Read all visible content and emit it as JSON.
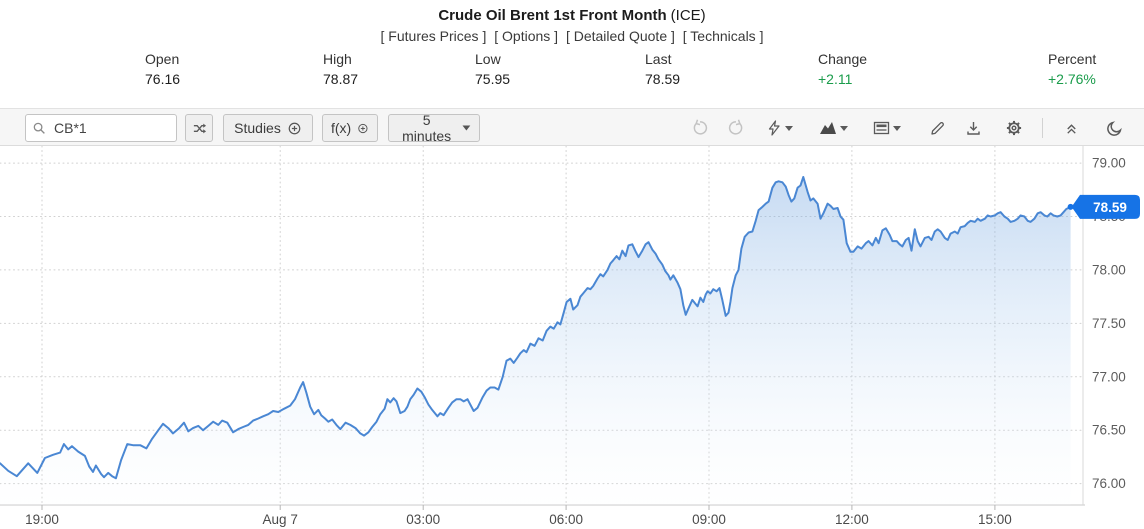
{
  "header": {
    "title": "Crude Oil Brent 1st Front Month",
    "title_suffix": "(ICE)",
    "links": [
      "[ Futures Prices ]",
      "[ Options ]",
      "[ Detailed Quote ]",
      "[ Technicals ]"
    ],
    "stats": [
      {
        "label": "Open",
        "value": "76.16"
      },
      {
        "label": "High",
        "value": "78.87"
      },
      {
        "label": "Low",
        "value": "75.95"
      },
      {
        "label": "Last",
        "value": "78.59"
      },
      {
        "label": "Change",
        "value": "+2.11"
      },
      {
        "label": "Percent",
        "value": "+2.76%"
      }
    ]
  },
  "toolbar": {
    "symbol_value": "CB*1",
    "studies_label": "Studies",
    "fx_label": "f(x)",
    "interval_label": "5 minutes",
    "icon_names": [
      "search-icon",
      "shuffle-icon",
      "plus-circle-icon",
      "caret-down-icon",
      "undo-icon",
      "redo-icon",
      "events-lightning-icon",
      "chart-type-area-icon",
      "layout-panels-icon",
      "draw-pencil-icon",
      "download-icon",
      "settings-gear-icon",
      "collapse-toolbar-icon",
      "dark-mode-moon-icon"
    ]
  },
  "colors": {
    "line": "#4a87d3",
    "area_top": "rgba(120,168,224,0.42)",
    "area_mid": "rgba(178,208,240,0.26)",
    "area_bottom": "rgba(252,253,255,0.10)",
    "badge": "#1673e6",
    "positive_green": "#1a9c4b",
    "grid": "#d0d0d0",
    "axis_text": "#5c5c5c"
  },
  "chart_data": {
    "type": "area",
    "title": "Crude Oil Brent 1st Front Month (ICE) — 5 minute chart",
    "x_unit": "hours since Aug 6 18:00",
    "xlim": [
      0.118,
      22.85
    ],
    "ylim": [
      75.8,
      79.16
    ],
    "y_ticks": [
      76.0,
      76.5,
      77.0,
      77.5,
      78.0,
      78.5,
      79.0
    ],
    "x_ticks": [
      {
        "label": "19:00",
        "h": 1
      },
      {
        "label": "Aug 7",
        "h": 6
      },
      {
        "label": "03:00",
        "h": 9
      },
      {
        "label": "06:00",
        "h": 12
      },
      {
        "label": "09:00",
        "h": 15
      },
      {
        "label": "12:00",
        "h": 18
      },
      {
        "label": "15:00",
        "h": 21
      }
    ],
    "legend": "off",
    "grid": "dotted",
    "last": 78.59,
    "last_label": "78.59",
    "series": [
      {
        "name": "CB*1",
        "points": [
          [
            0.12,
            76.19
          ],
          [
            0.29,
            76.12
          ],
          [
            0.47,
            76.07
          ],
          [
            0.71,
            76.19
          ],
          [
            0.9,
            76.1
          ],
          [
            1.06,
            76.24
          ],
          [
            1.23,
            76.27
          ],
          [
            1.38,
            76.29
          ],
          [
            1.46,
            76.37
          ],
          [
            1.55,
            76.32
          ],
          [
            1.63,
            76.35
          ],
          [
            1.76,
            76.3
          ],
          [
            1.9,
            76.26
          ],
          [
            1.99,
            76.16
          ],
          [
            2.07,
            76.11
          ],
          [
            2.13,
            76.17
          ],
          [
            2.24,
            76.09
          ],
          [
            2.3,
            76.06
          ],
          [
            2.39,
            76.1
          ],
          [
            2.47,
            76.07
          ],
          [
            2.55,
            76.05
          ],
          [
            2.66,
            76.22
          ],
          [
            2.79,
            76.37
          ],
          [
            2.91,
            76.36
          ],
          [
            3.06,
            76.36
          ],
          [
            3.19,
            76.33
          ],
          [
            3.31,
            76.42
          ],
          [
            3.44,
            76.5
          ],
          [
            3.54,
            76.56
          ],
          [
            3.65,
            76.52
          ],
          [
            3.75,
            76.47
          ],
          [
            3.88,
            76.52
          ],
          [
            3.98,
            76.57
          ],
          [
            4.07,
            76.49
          ],
          [
            4.17,
            76.52
          ],
          [
            4.28,
            76.54
          ],
          [
            4.38,
            76.5
          ],
          [
            4.49,
            76.54
          ],
          [
            4.59,
            76.58
          ],
          [
            4.7,
            76.55
          ],
          [
            4.78,
            76.59
          ],
          [
            4.89,
            76.57
          ],
          [
            5.01,
            76.48
          ],
          [
            5.12,
            76.51
          ],
          [
            5.22,
            76.53
          ],
          [
            5.33,
            76.55
          ],
          [
            5.43,
            76.59
          ],
          [
            5.54,
            76.61
          ],
          [
            5.64,
            76.63
          ],
          [
            5.75,
            76.65
          ],
          [
            5.85,
            76.68
          ],
          [
            5.96,
            76.67
          ],
          [
            6.08,
            76.7
          ],
          [
            6.21,
            76.73
          ],
          [
            6.31,
            76.79
          ],
          [
            6.42,
            76.9
          ],
          [
            6.48,
            76.95
          ],
          [
            6.55,
            76.85
          ],
          [
            6.63,
            76.72
          ],
          [
            6.71,
            76.65
          ],
          [
            6.8,
            76.69
          ],
          [
            6.86,
            76.64
          ],
          [
            6.94,
            76.61
          ],
          [
            7.01,
            76.58
          ],
          [
            7.09,
            76.6
          ],
          [
            7.18,
            76.55
          ],
          [
            7.26,
            76.51
          ],
          [
            7.37,
            76.57
          ],
          [
            7.47,
            76.55
          ],
          [
            7.58,
            76.52
          ],
          [
            7.68,
            76.47
          ],
          [
            7.76,
            76.45
          ],
          [
            7.85,
            76.48
          ],
          [
            7.93,
            76.53
          ],
          [
            8.02,
            76.58
          ],
          [
            8.1,
            76.65
          ],
          [
            8.19,
            76.7
          ],
          [
            8.25,
            76.79
          ],
          [
            8.31,
            76.76
          ],
          [
            8.38,
            76.8
          ],
          [
            8.44,
            76.77
          ],
          [
            8.52,
            76.66
          ],
          [
            8.61,
            76.68
          ],
          [
            8.67,
            76.72
          ],
          [
            8.73,
            76.79
          ],
          [
            8.8,
            76.83
          ],
          [
            8.88,
            76.89
          ],
          [
            8.96,
            76.86
          ],
          [
            9.03,
            76.81
          ],
          [
            9.11,
            76.74
          ],
          [
            9.19,
            76.69
          ],
          [
            9.3,
            76.63
          ],
          [
            9.36,
            76.66
          ],
          [
            9.43,
            76.64
          ],
          [
            9.53,
            76.71
          ],
          [
            9.61,
            76.76
          ],
          [
            9.7,
            76.79
          ],
          [
            9.78,
            76.79
          ],
          [
            9.85,
            76.77
          ],
          [
            9.93,
            76.79
          ],
          [
            9.99,
            76.74
          ],
          [
            10.06,
            76.68
          ],
          [
            10.14,
            76.71
          ],
          [
            10.25,
            76.81
          ],
          [
            10.33,
            76.87
          ],
          [
            10.41,
            76.9
          ],
          [
            10.5,
            76.9
          ],
          [
            10.58,
            76.88
          ],
          [
            10.67,
            77.0
          ],
          [
            10.75,
            77.15
          ],
          [
            10.83,
            77.17
          ],
          [
            10.9,
            77.13
          ],
          [
            10.98,
            77.18
          ],
          [
            11.04,
            77.22
          ],
          [
            11.11,
            77.25
          ],
          [
            11.17,
            77.23
          ],
          [
            11.25,
            77.31
          ],
          [
            11.34,
            77.29
          ],
          [
            11.42,
            77.36
          ],
          [
            11.51,
            77.34
          ],
          [
            11.59,
            77.43
          ],
          [
            11.67,
            77.47
          ],
          [
            11.74,
            77.45
          ],
          [
            11.82,
            77.51
          ],
          [
            11.88,
            77.49
          ],
          [
            11.95,
            77.6
          ],
          [
            12.01,
            77.7
          ],
          [
            12.09,
            77.73
          ],
          [
            12.15,
            77.63
          ],
          [
            12.24,
            77.67
          ],
          [
            12.3,
            77.75
          ],
          [
            12.36,
            77.78
          ],
          [
            12.45,
            77.83
          ],
          [
            12.51,
            77.82
          ],
          [
            12.57,
            77.85
          ],
          [
            12.66,
            77.92
          ],
          [
            12.72,
            77.96
          ],
          [
            12.78,
            77.94
          ],
          [
            12.87,
            78.0
          ],
          [
            12.93,
            78.06
          ],
          [
            12.99,
            78.09
          ],
          [
            13.06,
            78.13
          ],
          [
            13.12,
            78.1
          ],
          [
            13.18,
            78.18
          ],
          [
            13.25,
            78.13
          ],
          [
            13.31,
            78.23
          ],
          [
            13.39,
            78.24
          ],
          [
            13.45,
            78.18
          ],
          [
            13.52,
            78.12
          ],
          [
            13.6,
            78.18
          ],
          [
            13.67,
            78.24
          ],
          [
            13.73,
            78.26
          ],
          [
            13.81,
            78.19
          ],
          [
            13.88,
            78.15
          ],
          [
            13.94,
            78.1
          ],
          [
            14.02,
            78.05
          ],
          [
            14.08,
            77.99
          ],
          [
            14.15,
            77.95
          ],
          [
            14.19,
            77.91
          ],
          [
            14.25,
            77.95
          ],
          [
            14.34,
            77.88
          ],
          [
            14.4,
            77.82
          ],
          [
            14.46,
            77.67
          ],
          [
            14.51,
            77.58
          ],
          [
            14.57,
            77.64
          ],
          [
            14.65,
            77.72
          ],
          [
            14.72,
            77.68
          ],
          [
            14.76,
            77.66
          ],
          [
            14.82,
            77.74
          ],
          [
            14.88,
            77.7
          ],
          [
            14.93,
            77.77
          ],
          [
            14.97,
            77.8
          ],
          [
            15.03,
            77.78
          ],
          [
            15.09,
            77.82
          ],
          [
            15.16,
            77.8
          ],
          [
            15.22,
            77.83
          ],
          [
            15.28,
            77.72
          ],
          [
            15.35,
            77.57
          ],
          [
            15.41,
            77.6
          ],
          [
            15.45,
            77.7
          ],
          [
            15.49,
            77.83
          ],
          [
            15.56,
            77.95
          ],
          [
            15.62,
            78.0
          ],
          [
            15.68,
            78.2
          ],
          [
            15.75,
            78.31
          ],
          [
            15.83,
            78.35
          ],
          [
            15.91,
            78.36
          ],
          [
            15.98,
            78.46
          ],
          [
            16.04,
            78.56
          ],
          [
            16.12,
            78.59
          ],
          [
            16.19,
            78.62
          ],
          [
            16.25,
            78.64
          ],
          [
            16.33,
            78.77
          ],
          [
            16.4,
            78.82
          ],
          [
            16.46,
            78.83
          ],
          [
            16.54,
            78.82
          ],
          [
            16.61,
            78.78
          ],
          [
            16.67,
            78.7
          ],
          [
            16.73,
            78.64
          ],
          [
            16.79,
            78.67
          ],
          [
            16.86,
            78.77
          ],
          [
            16.92,
            78.79
          ],
          [
            16.98,
            78.87
          ],
          [
            17.07,
            78.73
          ],
          [
            17.13,
            78.65
          ],
          [
            17.19,
            78.67
          ],
          [
            17.28,
            78.62
          ],
          [
            17.34,
            78.48
          ],
          [
            17.4,
            78.53
          ],
          [
            17.49,
            78.62
          ],
          [
            17.55,
            78.6
          ],
          [
            17.61,
            78.57
          ],
          [
            17.7,
            78.58
          ],
          [
            17.76,
            78.5
          ],
          [
            17.82,
            78.47
          ],
          [
            17.89,
            78.25
          ],
          [
            17.97,
            78.17
          ],
          [
            18.03,
            78.17
          ],
          [
            18.12,
            78.22
          ],
          [
            18.2,
            78.2
          ],
          [
            18.29,
            78.25
          ],
          [
            18.35,
            78.27
          ],
          [
            18.43,
            78.23
          ],
          [
            18.5,
            78.3
          ],
          [
            18.56,
            78.25
          ],
          [
            18.64,
            78.37
          ],
          [
            18.71,
            78.39
          ],
          [
            18.79,
            78.33
          ],
          [
            18.85,
            78.27
          ],
          [
            18.94,
            78.27
          ],
          [
            19.0,
            78.24
          ],
          [
            19.06,
            78.22
          ],
          [
            19.13,
            78.28
          ],
          [
            19.19,
            78.3
          ],
          [
            19.25,
            78.18
          ],
          [
            19.32,
            78.38
          ],
          [
            19.38,
            78.27
          ],
          [
            19.44,
            78.22
          ],
          [
            19.53,
            78.3
          ],
          [
            19.61,
            78.31
          ],
          [
            19.67,
            78.28
          ],
          [
            19.74,
            78.36
          ],
          [
            19.8,
            78.38
          ],
          [
            19.86,
            78.36
          ],
          [
            19.95,
            78.3
          ],
          [
            20.01,
            78.28
          ],
          [
            20.07,
            78.34
          ],
          [
            20.16,
            78.36
          ],
          [
            20.22,
            78.34
          ],
          [
            20.28,
            78.4
          ],
          [
            20.37,
            78.41
          ],
          [
            20.43,
            78.44
          ],
          [
            20.49,
            78.46
          ],
          [
            20.58,
            78.45
          ],
          [
            20.64,
            78.48
          ],
          [
            20.7,
            78.46
          ],
          [
            20.79,
            78.48
          ],
          [
            20.85,
            78.51
          ],
          [
            20.91,
            78.5
          ],
          [
            21.0,
            78.51
          ],
          [
            21.06,
            78.53
          ],
          [
            21.12,
            78.54
          ],
          [
            21.2,
            78.5
          ],
          [
            21.27,
            78.48
          ],
          [
            21.33,
            78.45
          ],
          [
            21.41,
            78.46
          ],
          [
            21.48,
            78.48
          ],
          [
            21.54,
            78.51
          ],
          [
            21.62,
            78.5
          ],
          [
            21.69,
            78.46
          ],
          [
            21.75,
            78.45
          ],
          [
            21.83,
            78.48
          ],
          [
            21.9,
            78.53
          ],
          [
            21.96,
            78.54
          ],
          [
            22.04,
            78.51
          ],
          [
            22.1,
            78.5
          ],
          [
            22.17,
            78.53
          ],
          [
            22.23,
            78.51
          ],
          [
            22.31,
            78.5
          ],
          [
            22.38,
            78.51
          ],
          [
            22.44,
            78.54
          ],
          [
            22.5,
            78.57
          ],
          [
            22.59,
            78.59
          ]
        ]
      }
    ]
  }
}
